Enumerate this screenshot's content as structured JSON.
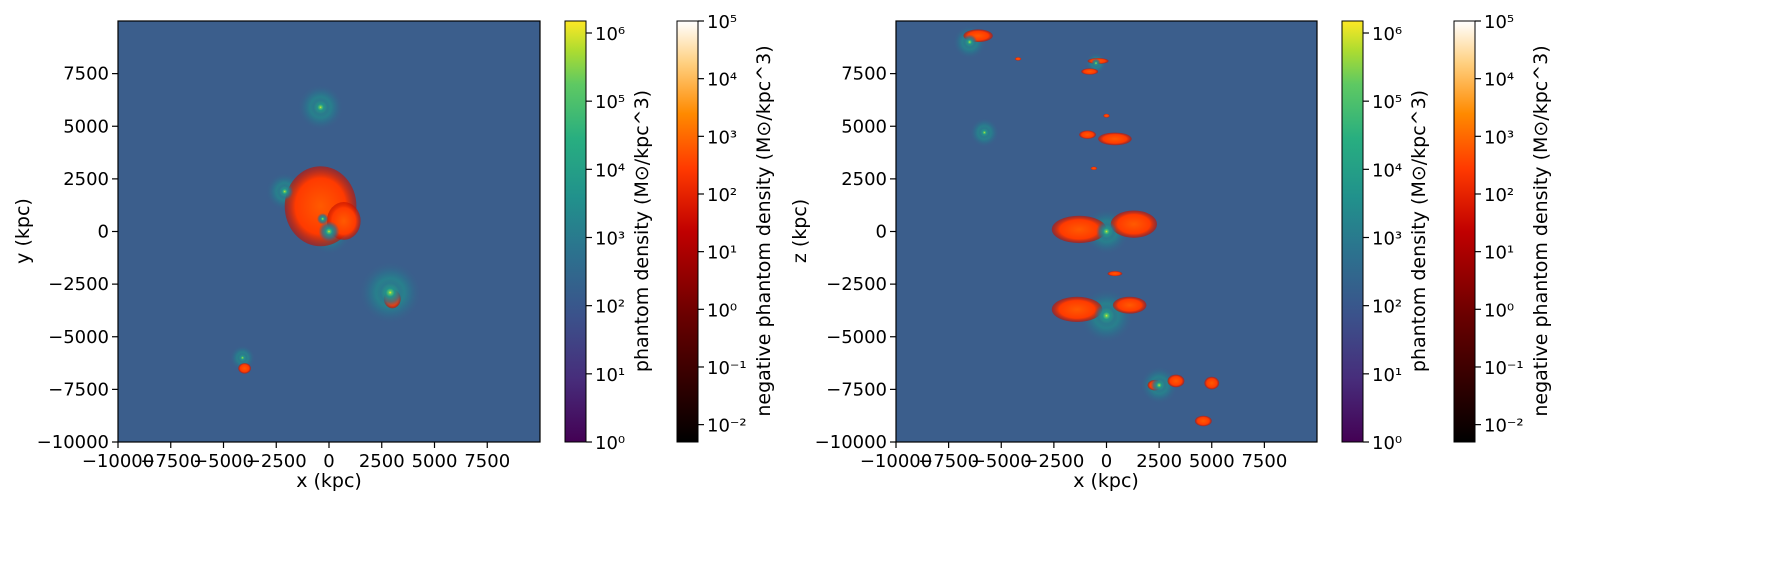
{
  "colors": {
    "background": "#3b5e8c",
    "phantom_low": "#440154",
    "phantom_high": "#fde725",
    "negative_low": "#000000",
    "negative_high": "#ffffff",
    "feature": "#ff4500"
  },
  "chart_data": [
    {
      "type": "heatmap",
      "title": "",
      "xlabel": "x (kpc)",
      "ylabel": "y (kpc)",
      "xlim": [
        -10000,
        10000
      ],
      "ylim": [
        -10000,
        10000
      ],
      "xticks": [
        -10000,
        -7500,
        -5000,
        -2500,
        0,
        2500,
        5000,
        7500
      ],
      "yticks": [
        -10000,
        -7500,
        -5000,
        -2500,
        0,
        2500,
        5000,
        7500
      ],
      "xtick_labels": [
        "−10000",
        "−7500",
        "−5000",
        "−2500",
        "0",
        "2500",
        "5000",
        "7500"
      ],
      "ytick_labels": [
        "−10000",
        "−7500",
        "−5000",
        "−2500",
        "0",
        "2500",
        "5000",
        "7500"
      ],
      "colorbars": [
        {
          "label": "phantom density (M⊙/kpc^3)",
          "scale": "log",
          "range": [
            1,
            1500000
          ],
          "colormap": "viridis",
          "tick_values": [
            1,
            10,
            100,
            1000,
            10000,
            100000,
            1000000
          ],
          "tick_labels": [
            "10⁰",
            "10¹",
            "10²",
            "10³",
            "10⁴",
            "10⁵",
            "10⁶"
          ]
        },
        {
          "label": "negative phantom density (M⊙/kpc^3)",
          "scale": "log",
          "range": [
            0.005,
            100000
          ],
          "colormap": "gist_heat",
          "tick_values": [
            0.01,
            0.1,
            1,
            10,
            100,
            1000,
            10000,
            100000
          ],
          "tick_labels": [
            "10⁻²",
            "10⁻¹",
            "10⁰",
            "10¹",
            "10²",
            "10³",
            "10⁴",
            "10⁵"
          ]
        }
      ],
      "features": {
        "halos": [
          {
            "x": 0,
            "y": 0,
            "r": 1100
          },
          {
            "x": -2100,
            "y": 1900,
            "r": 900
          },
          {
            "x": -300,
            "y": 600,
            "r": 600
          },
          {
            "x": 2900,
            "y": -2900,
            "r": 1500
          },
          {
            "x": -4100,
            "y": -6000,
            "r": 600
          },
          {
            "x": -400,
            "y": 5900,
            "r": 1100
          }
        ],
        "negative_regions": [
          {
            "x": -400,
            "y": 1200,
            "rx": 1700,
            "ry": 1900
          },
          {
            "x": 700,
            "y": 500,
            "rx": 800,
            "ry": 900
          },
          {
            "x": 3000,
            "y": -3200,
            "rx": 400,
            "ry": 450
          },
          {
            "x": -4000,
            "y": -6500,
            "rx": 300,
            "ry": 250
          }
        ]
      }
    },
    {
      "type": "heatmap",
      "title": "",
      "xlabel": "x (kpc)",
      "ylabel": "z (kpc)",
      "xlim": [
        -10000,
        10000
      ],
      "ylim": [
        -10000,
        10000
      ],
      "xticks": [
        -10000,
        -7500,
        -5000,
        -2500,
        0,
        2500,
        5000,
        7500
      ],
      "yticks": [
        -10000,
        -7500,
        -5000,
        -2500,
        0,
        2500,
        5000,
        7500
      ],
      "xtick_labels": [
        "−10000",
        "−7500",
        "−5000",
        "−2500",
        "0",
        "2500",
        "5000",
        "7500"
      ],
      "ytick_labels": [
        "−10000",
        "−7500",
        "−5000",
        "−2500",
        "0",
        "2500",
        "5000",
        "7500"
      ],
      "colorbars": [
        {
          "label": "phantom density (M⊙/kpc^3)",
          "scale": "log",
          "range": [
            1,
            1500000
          ],
          "colormap": "viridis",
          "tick_values": [
            1,
            10,
            100,
            1000,
            10000,
            100000,
            1000000
          ],
          "tick_labels": [
            "10⁰",
            "10¹",
            "10²",
            "10³",
            "10⁴",
            "10⁵",
            "10⁶"
          ]
        },
        {
          "label": "negative phantom density (M⊙/kpc^3)",
          "scale": "log",
          "range": [
            0.005,
            100000
          ],
          "colormap": "gist_heat",
          "tick_values": [
            0.01,
            0.1,
            1,
            10,
            100,
            1000,
            10000,
            100000
          ],
          "tick_labels": [
            "10⁻²",
            "10⁻¹",
            "10⁰",
            "10¹",
            "10²",
            "10³",
            "10⁴",
            "10⁵"
          ]
        }
      ],
      "features": {
        "halos": [
          {
            "x": 0,
            "y": 0,
            "r": 1100
          },
          {
            "x": 0,
            "y": -4000,
            "r": 1300
          },
          {
            "x": -6500,
            "y": 9000,
            "r": 800
          },
          {
            "x": 2500,
            "y": -7300,
            "r": 900
          },
          {
            "x": -500,
            "y": 8000,
            "r": 500
          },
          {
            "x": -5800,
            "y": 4700,
            "r": 700
          }
        ],
        "negative_regions": [
          {
            "x": -6100,
            "y": 9300,
            "rx": 700,
            "ry": 300
          },
          {
            "x": -4200,
            "y": 8200,
            "rx": 150,
            "ry": 80
          },
          {
            "x": -800,
            "y": 7600,
            "rx": 400,
            "ry": 150
          },
          {
            "x": -400,
            "y": 8100,
            "rx": 500,
            "ry": 140
          },
          {
            "x": 0,
            "y": 5500,
            "rx": 150,
            "ry": 90
          },
          {
            "x": -900,
            "y": 4600,
            "rx": 400,
            "ry": 200
          },
          {
            "x": 400,
            "y": 4400,
            "rx": 800,
            "ry": 300
          },
          {
            "x": -600,
            "y": 3000,
            "rx": 150,
            "ry": 80
          },
          {
            "x": -1300,
            "y": 100,
            "rx": 1300,
            "ry": 650
          },
          {
            "x": 1300,
            "y": 350,
            "rx": 1100,
            "ry": 650
          },
          {
            "x": 400,
            "y": -2000,
            "rx": 350,
            "ry": 120
          },
          {
            "x": -1400,
            "y": -3700,
            "rx": 1200,
            "ry": 600
          },
          {
            "x": 1100,
            "y": -3500,
            "rx": 800,
            "ry": 400
          },
          {
            "x": 2300,
            "y": -7300,
            "rx": 350,
            "ry": 250
          },
          {
            "x": 3300,
            "y": -7100,
            "rx": 400,
            "ry": 300
          },
          {
            "x": 5000,
            "y": -7200,
            "rx": 350,
            "ry": 300
          },
          {
            "x": 4600,
            "y": -9000,
            "rx": 400,
            "ry": 250
          }
        ]
      }
    }
  ]
}
